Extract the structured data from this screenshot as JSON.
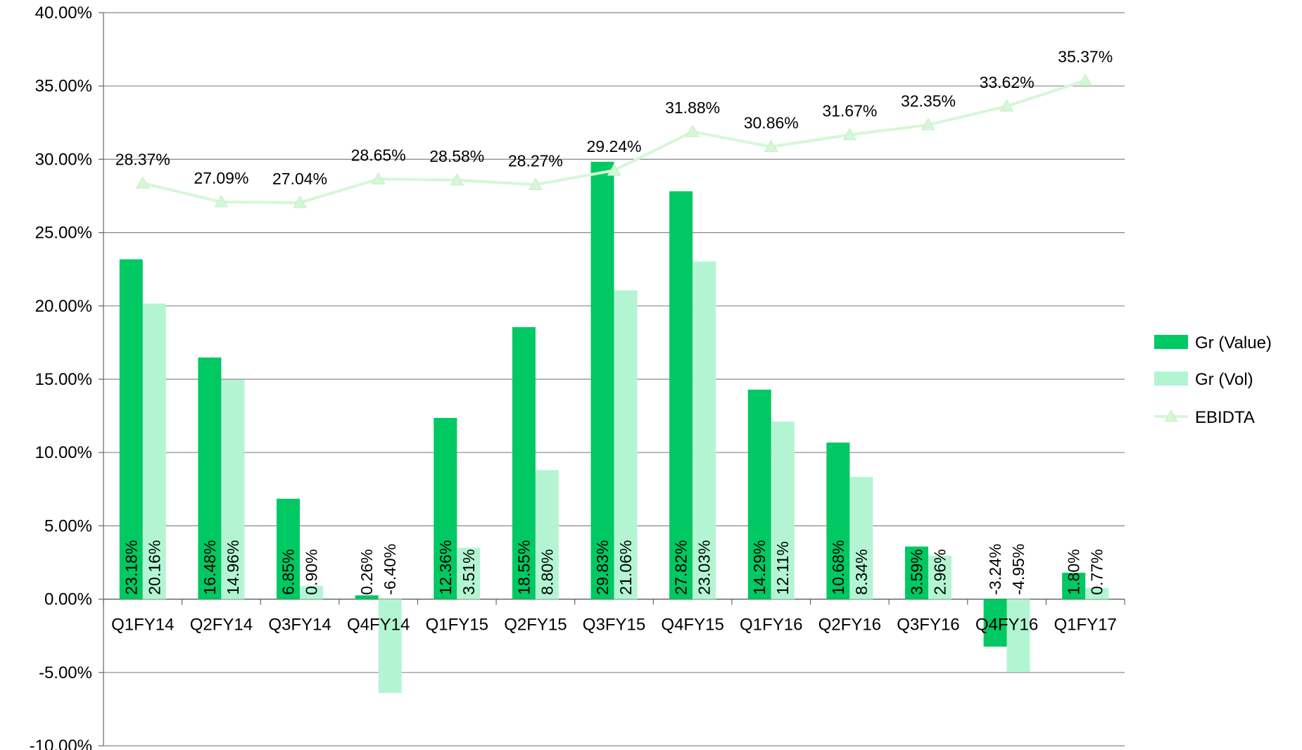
{
  "chart_data": {
    "type": "bar",
    "categories": [
      "Q1FY14",
      "Q2FY14",
      "Q3FY14",
      "Q4FY14",
      "Q1FY15",
      "Q2FY15",
      "Q3FY15",
      "Q4FY15",
      "Q1FY16",
      "Q2FY16",
      "Q3FY16",
      "Q4FY16",
      "Q1FY17"
    ],
    "ylim": [
      -10,
      40
    ],
    "ytick_step": 5,
    "ytick_labels": [
      "40.00%",
      "35.00%",
      "30.00%",
      "25.00%",
      "20.00%",
      "15.00%",
      "10.00%",
      "5.00%",
      "0.00%",
      "-5.00%",
      "-10.00%"
    ],
    "grid": "horizontal",
    "legend_position": "right",
    "series": [
      {
        "name": "Gr (Value)",
        "type": "bar",
        "color": "#00c862",
        "values": [
          23.18,
          16.48,
          6.85,
          0.26,
          12.36,
          18.55,
          29.83,
          27.82,
          14.29,
          10.68,
          3.59,
          -3.24,
          1.8
        ],
        "labels": [
          "23.18%",
          "16.48%",
          "6.85%",
          "0.26%",
          "12.36%",
          "18.55%",
          "29.83%",
          "27.82%",
          "14.29%",
          "10.68%",
          "3.59%",
          "-3.24%",
          "1.80%"
        ]
      },
      {
        "name": "Gr (Vol)",
        "type": "bar",
        "color": "#b3f5d3",
        "values": [
          20.16,
          14.96,
          0.9,
          -6.4,
          3.51,
          8.8,
          21.06,
          23.03,
          12.11,
          8.34,
          2.96,
          -4.95,
          0.77
        ],
        "labels": [
          "20.16%",
          "14.96%",
          "0.90%",
          "-6.40%",
          "3.51%",
          "8.80%",
          "21.06%",
          "23.03%",
          "12.11%",
          "8.34%",
          "2.96%",
          "-4.95%",
          "0.77%"
        ]
      },
      {
        "name": "EBIDTA",
        "type": "line",
        "color": "#d6f7d6",
        "values": [
          28.37,
          27.09,
          27.04,
          28.65,
          28.58,
          28.27,
          29.24,
          31.88,
          30.86,
          31.67,
          32.35,
          33.62,
          35.37
        ],
        "labels": [
          "28.37%",
          "27.09%",
          "27.04%",
          "28.65%",
          "28.58%",
          "28.27%",
          "29.24%",
          "31.88%",
          "30.86%",
          "31.67%",
          "32.35%",
          "33.62%",
          "35.37%"
        ]
      }
    ]
  }
}
